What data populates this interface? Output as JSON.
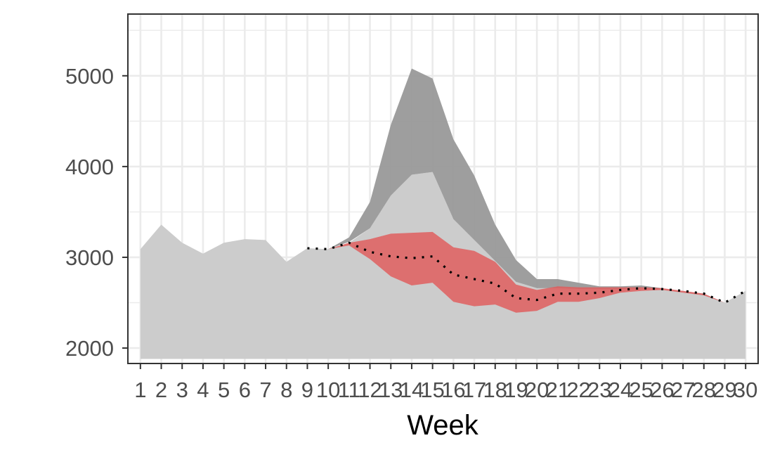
{
  "chart_data": {
    "type": "area",
    "xlabel": "Week",
    "ylabel": "",
    "x": [
      1,
      2,
      3,
      4,
      5,
      6,
      7,
      8,
      9,
      10,
      11,
      12,
      13,
      14,
      15,
      16,
      17,
      18,
      19,
      20,
      21,
      22,
      23,
      24,
      25,
      26,
      27,
      28,
      29,
      30
    ],
    "xlim": [
      0.4,
      30.6
    ],
    "ylim": [
      1830,
      5680
    ],
    "yticks": [
      2000,
      3000,
      4000,
      5000
    ],
    "grid": true,
    "series": [
      {
        "role": "base-area",
        "color": "#cccccc",
        "values": [
          3090,
          3360,
          3160,
          3040,
          3160,
          3200,
          3190,
          2950,
          3100,
          3090,
          3160,
          3320,
          3680,
          3910,
          3940,
          3420,
          3190,
          2960,
          2730,
          2660,
          2660,
          2650,
          2650,
          2650,
          2660,
          2650,
          2630,
          2600,
          2500,
          2630
        ]
      },
      {
        "role": "upper-band",
        "color": "#999999",
        "x": [
          10,
          11,
          12,
          13,
          14,
          15,
          16,
          17,
          18,
          19,
          20,
          21,
          22,
          23,
          24,
          25,
          26
        ],
        "upper": [
          3090,
          3220,
          3610,
          4460,
          5080,
          4970,
          4300,
          3900,
          3360,
          2970,
          2760,
          2760,
          2720,
          2680,
          2680,
          2690,
          2660
        ],
        "lower": [
          3090,
          3170,
          3320,
          3680,
          3910,
          3940,
          3420,
          3190,
          2960,
          2730,
          2660,
          2660,
          2650,
          2650,
          2650,
          2660,
          2650
        ]
      },
      {
        "role": "red-band",
        "color": "#e05a5a",
        "x": [
          9,
          10,
          11,
          12,
          13,
          14,
          15,
          16,
          17,
          18,
          19,
          20,
          21,
          22,
          23,
          24,
          25,
          26,
          27,
          28,
          29,
          30
        ],
        "upper": [
          3100,
          3090,
          3160,
          3200,
          3260,
          3270,
          3280,
          3110,
          3070,
          2950,
          2700,
          2640,
          2680,
          2670,
          2670,
          2670,
          2670,
          2660,
          2630,
          2600,
          2500,
          2630
        ],
        "lower": [
          3100,
          3090,
          3130,
          2980,
          2790,
          2690,
          2720,
          2510,
          2460,
          2480,
          2390,
          2410,
          2510,
          2510,
          2550,
          2610,
          2630,
          2640,
          2610,
          2580,
          2500,
          2630
        ]
      },
      {
        "role": "dotted-line",
        "color": "#000000",
        "x": [
          9,
          10,
          11,
          12,
          13,
          14,
          15,
          16,
          17,
          18,
          19,
          20,
          21,
          22,
          23,
          24,
          25,
          26,
          27,
          28,
          29,
          30
        ],
        "values": [
          3100,
          3090,
          3160,
          3060,
          3010,
          2990,
          3010,
          2810,
          2760,
          2710,
          2550,
          2530,
          2600,
          2600,
          2610,
          2640,
          2660,
          2650,
          2630,
          2600,
          2500,
          2630
        ]
      }
    ]
  }
}
